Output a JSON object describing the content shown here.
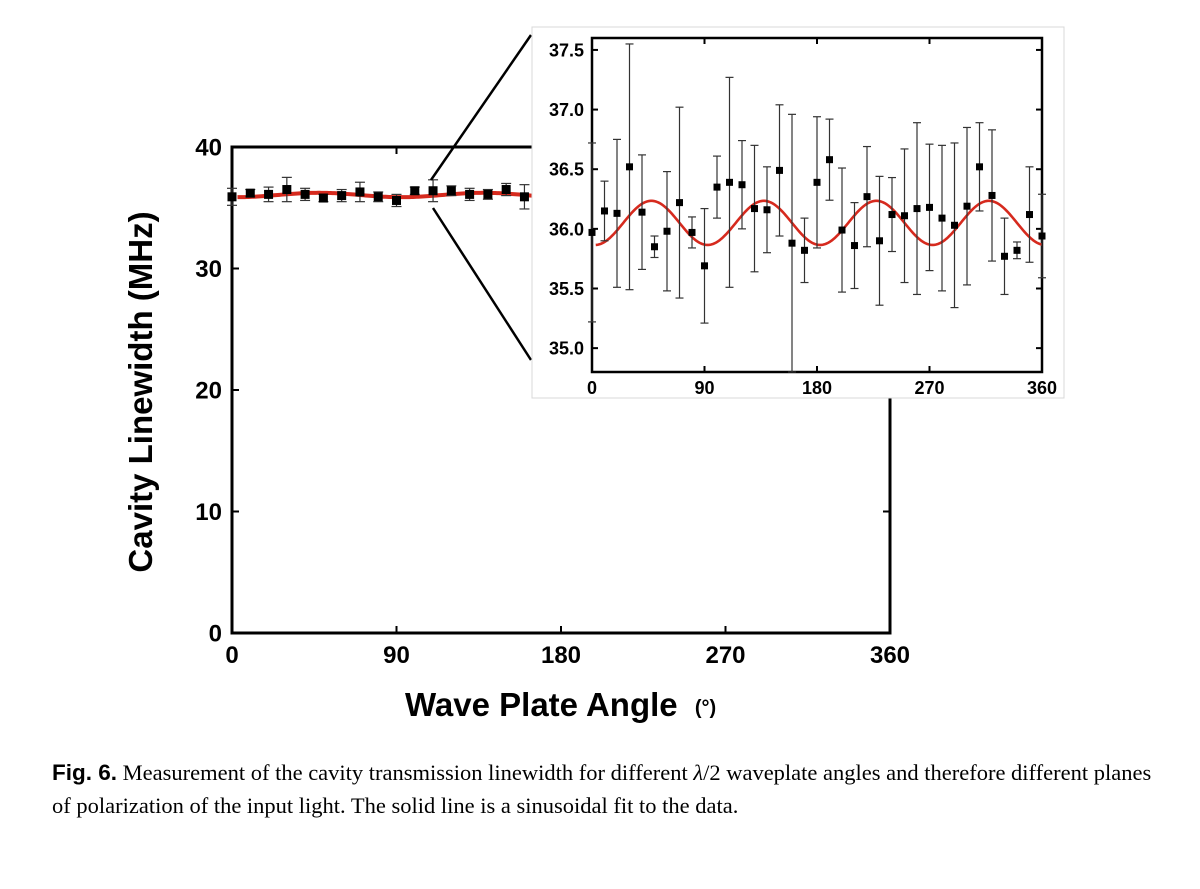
{
  "chart_data": [
    {
      "type": "scatter",
      "ylabel": "Cavity Linewidth (MHz)",
      "xlabel": "Wave Plate Angle",
      "xlabel_unit": "(°)",
      "xlim": [
        0,
        360
      ],
      "ylim": [
        0,
        40
      ],
      "xticks": [
        "0",
        "90",
        "180",
        "270",
        "360"
      ],
      "yticks": [
        "0",
        "10",
        "20",
        "30",
        "40"
      ],
      "grid": false,
      "points": [
        {
          "x": 0,
          "y": 35.9,
          "err": 0.7
        },
        {
          "x": 10,
          "y": 36.2,
          "err": 0.3
        },
        {
          "x": 20,
          "y": 36.1,
          "err": 0.6
        },
        {
          "x": 30,
          "y": 36.5,
          "err": 1.0
        },
        {
          "x": 40,
          "y": 36.1,
          "err": 0.5
        },
        {
          "x": 50,
          "y": 35.8,
          "err": 0.3
        },
        {
          "x": 60,
          "y": 36.0,
          "err": 0.5
        },
        {
          "x": 70,
          "y": 36.3,
          "err": 0.8
        },
        {
          "x": 80,
          "y": 35.9,
          "err": 0.4
        },
        {
          "x": 90,
          "y": 35.6,
          "err": 0.5
        },
        {
          "x": 100,
          "y": 36.4,
          "err": 0.3
        },
        {
          "x": 110,
          "y": 36.4,
          "err": 0.9
        },
        {
          "x": 120,
          "y": 36.4,
          "err": 0.4
        },
        {
          "x": 130,
          "y": 36.1,
          "err": 0.5
        },
        {
          "x": 140,
          "y": 36.1,
          "err": 0.4
        },
        {
          "x": 150,
          "y": 36.5,
          "err": 0.5
        },
        {
          "x": 160,
          "y": 35.9,
          "err": 1.0
        }
      ],
      "fit": {
        "offset": 36.05,
        "amplitude": 0.18,
        "period": 90,
        "phase_deg": 25,
        "color": "#d62a1e"
      }
    },
    {
      "type": "scatter",
      "role": "inset",
      "xlim": [
        0,
        360
      ],
      "ylim": [
        34.8,
        37.6
      ],
      "xticks": [
        "0",
        "90",
        "180",
        "270",
        "360"
      ],
      "yticks": [
        "35.0",
        "35.5",
        "36.0",
        "36.5",
        "37.0",
        "37.5"
      ],
      "grid": false,
      "points": [
        {
          "x": 0,
          "y": 35.97,
          "err": 0.75
        },
        {
          "x": 10,
          "y": 36.15,
          "err": 0.25
        },
        {
          "x": 20,
          "y": 36.13,
          "err": 0.62
        },
        {
          "x": 30,
          "y": 36.52,
          "err": 1.03
        },
        {
          "x": 40,
          "y": 36.14,
          "err": 0.48
        },
        {
          "x": 50,
          "y": 35.85,
          "err": 0.09
        },
        {
          "x": 60,
          "y": 35.98,
          "err": 0.5
        },
        {
          "x": 70,
          "y": 36.22,
          "err": 0.8
        },
        {
          "x": 80,
          "y": 35.97,
          "err": 0.13
        },
        {
          "x": 90,
          "y": 35.69,
          "err": 0.48
        },
        {
          "x": 100,
          "y": 36.35,
          "err": 0.26
        },
        {
          "x": 110,
          "y": 36.39,
          "err": 0.88
        },
        {
          "x": 120,
          "y": 36.37,
          "err": 0.37
        },
        {
          "x": 130,
          "y": 36.17,
          "err": 0.53
        },
        {
          "x": 140,
          "y": 36.16,
          "err": 0.36
        },
        {
          "x": 150,
          "y": 36.49,
          "err": 0.55
        },
        {
          "x": 160,
          "y": 35.88,
          "err": 1.08
        },
        {
          "x": 170,
          "y": 35.82,
          "err": 0.27
        },
        {
          "x": 180,
          "y": 36.39,
          "err": 0.55
        },
        {
          "x": 190,
          "y": 36.58,
          "err": 0.34
        },
        {
          "x": 200,
          "y": 35.99,
          "err": 0.52
        },
        {
          "x": 210,
          "y": 35.86,
          "err": 0.36
        },
        {
          "x": 220,
          "y": 36.27,
          "err": 0.42
        },
        {
          "x": 230,
          "y": 35.9,
          "err": 0.54
        },
        {
          "x": 240,
          "y": 36.12,
          "err": 0.31
        },
        {
          "x": 250,
          "y": 36.11,
          "err": 0.56
        },
        {
          "x": 260,
          "y": 36.17,
          "err": 0.72
        },
        {
          "x": 270,
          "y": 36.18,
          "err": 0.53
        },
        {
          "x": 280,
          "y": 36.09,
          "err": 0.61
        },
        {
          "x": 290,
          "y": 36.03,
          "err": 0.69
        },
        {
          "x": 300,
          "y": 36.19,
          "err": 0.66
        },
        {
          "x": 310,
          "y": 36.52,
          "err": 0.37
        },
        {
          "x": 320,
          "y": 36.28,
          "err": 0.55
        },
        {
          "x": 330,
          "y": 35.77,
          "err": 0.32
        },
        {
          "x": 340,
          "y": 35.82,
          "err": 0.07
        },
        {
          "x": 350,
          "y": 36.12,
          "err": 0.4
        },
        {
          "x": 360,
          "y": 35.94,
          "err": 0.35
        }
      ],
      "fit": {
        "offset": 36.05,
        "amplitude": 0.185,
        "period": 90,
        "phase_deg": 25,
        "color": "#d62a1e"
      }
    }
  ],
  "caption": {
    "label": "Fig. 6.",
    "text_before_math": " Measurement of the cavity transmission linewidth for different ",
    "math": "λ",
    "text_after_math": "/2 waveplate angles and therefore different planes of polarization of the input light. The solid line is a sinusoidal fit to the data."
  }
}
